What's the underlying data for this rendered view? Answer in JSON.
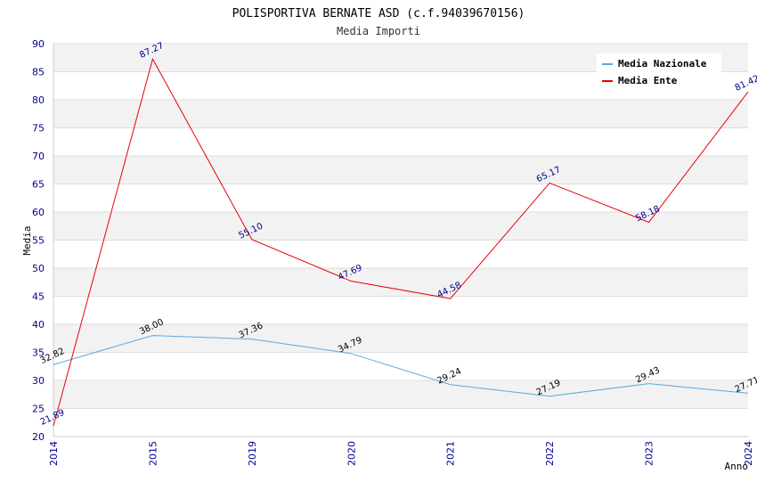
{
  "chart_data": {
    "type": "line",
    "title": "POLISPORTIVA BERNATE ASD (c.f.94039670156)",
    "subtitle": "Media Importi",
    "xlabel": "Anno",
    "ylabel": "Media",
    "ylim": [
      20,
      90
    ],
    "ytick_step": 5,
    "grid": true,
    "legend_position": "top-right",
    "categories": [
      "2014",
      "2015",
      "2019",
      "2020",
      "2021",
      "2022",
      "2023",
      "2024"
    ],
    "series": [
      {
        "name": "Media Nazionale",
        "color": "#5aaae0",
        "values": [
          32.82,
          38.0,
          37.36,
          34.79,
          29.24,
          27.19,
          29.43,
          27.71
        ],
        "labels": [
          "32.82",
          "38.00",
          "37.36",
          "34.79",
          "29.24",
          "27.19",
          "29.43",
          "27.71"
        ]
      },
      {
        "name": "Media Ente",
        "color": "#e8000b",
        "values": [
          21.89,
          87.27,
          55.1,
          47.69,
          44.58,
          65.17,
          58.18,
          81.42
        ],
        "labels": [
          "21.89",
          "87.27",
          "55.10",
          "47.69",
          "44.58",
          "65.17",
          "58.18",
          "81.42"
        ]
      }
    ]
  }
}
